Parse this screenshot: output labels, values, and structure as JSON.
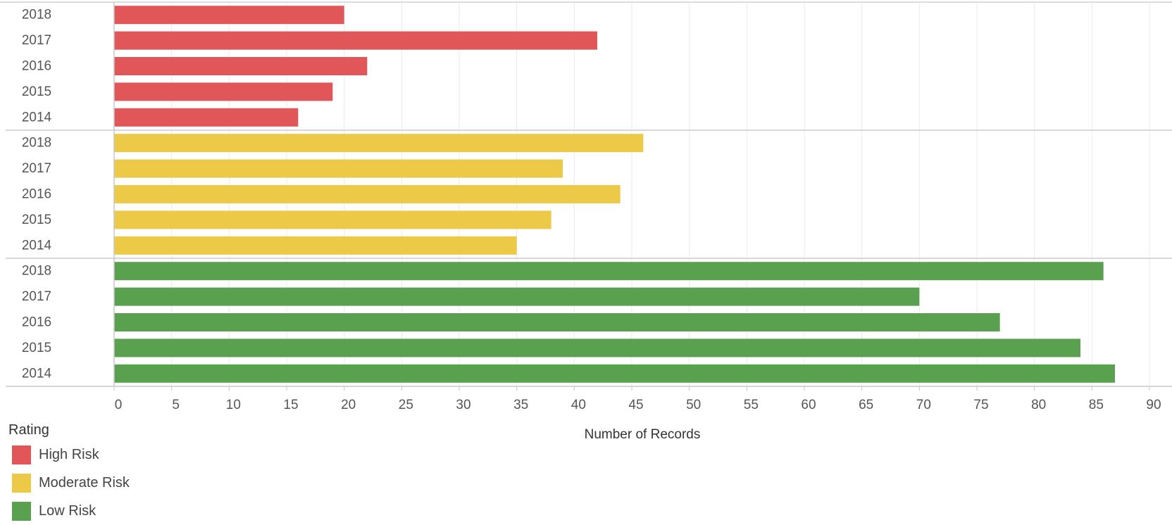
{
  "chart_data": {
    "type": "bar",
    "orientation": "horizontal",
    "xlabel": "Number of Records",
    "xlim": [
      0,
      90
    ],
    "x_ticks": [
      "0",
      "5",
      "10",
      "15",
      "20",
      "25",
      "30",
      "35",
      "40",
      "45",
      "50",
      "55",
      "60",
      "65",
      "70",
      "75",
      "80",
      "85",
      "90"
    ],
    "grid": true,
    "legend_position": "bottom-left",
    "legend": {
      "title": "Rating",
      "entries": [
        {
          "label": "High Risk",
          "color": "#e15759"
        },
        {
          "label": "Moderate Risk",
          "color": "#edc948"
        },
        {
          "label": "Low Risk",
          "color": "#59a14f"
        }
      ]
    },
    "categories": [
      "2018",
      "2017",
      "2016",
      "2015",
      "2014"
    ],
    "series": [
      {
        "name": "High Risk",
        "color": "#e15759",
        "values": [
          20,
          42,
          22,
          19,
          16
        ]
      },
      {
        "name": "Moderate Risk",
        "color": "#edc948",
        "values": [
          46,
          39,
          44,
          38,
          35
        ]
      },
      {
        "name": "Low Risk",
        "color": "#59a14f",
        "values": [
          86,
          70,
          77,
          84,
          87
        ]
      }
    ]
  }
}
